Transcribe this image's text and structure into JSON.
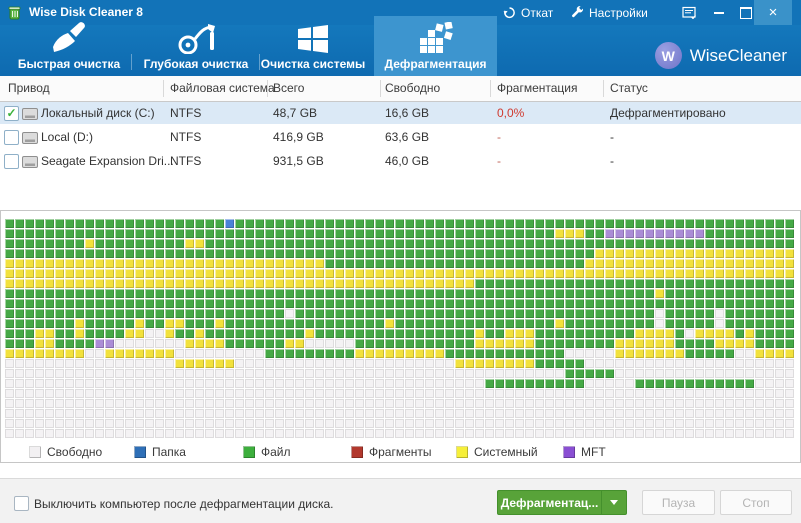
{
  "window": {
    "title": "Wise Disk Cleaner 8"
  },
  "titlebar": {
    "rollback": "Откат",
    "settings": "Настройки"
  },
  "brand": {
    "logo_letter": "W",
    "name": "WiseCleaner"
  },
  "tabs": [
    {
      "label": "Быстрая очистка",
      "icon": "brush-icon",
      "active": false
    },
    {
      "label": "Глубокая очистка",
      "icon": "vacuum-icon",
      "active": false
    },
    {
      "label": "Очистка системы",
      "icon": "windows-icon",
      "active": false
    },
    {
      "label": "Дефрагментация",
      "icon": "defrag-blocks-icon",
      "active": true
    }
  ],
  "table": {
    "columns": [
      "Привод",
      "Файловая система",
      "Всего",
      "Свободно",
      "Фрагментация",
      "Статус"
    ],
    "rows": [
      {
        "check": "✓",
        "drive": "Локальный диск (C:)",
        "fs": "NTFS",
        "total": "48,7 GB",
        "free": "16,6 GB",
        "frag": "0,0%",
        "frag_color": "#d03a2f",
        "status": "Дефрагментировано"
      },
      {
        "check": "",
        "drive": "Local (D:)",
        "fs": "NTFS",
        "total": "416,9 GB",
        "free": "63,6 GB",
        "frag": "-",
        "frag_color": "#c0645a",
        "status": "-"
      },
      {
        "check": "",
        "drive": "Seagate Expansion Dri...",
        "fs": "NTFS",
        "total": "931,5 GB",
        "free": "46,0 GB",
        "frag": "-",
        "frag_color": "#c0645a",
        "status": "-"
      }
    ]
  },
  "map": {
    "cols": 79,
    "cell_colors": {
      "G": "#45a945",
      "Y": "#f2e13c",
      "P": "#ab8cd6",
      "B": "#4b82d8",
      "W": "#f4f2f4"
    },
    "rows": [
      "22G 1B 56G",
      "55G 3Y 2G 10P 9G",
      "8G 1Y 9G 2Y 59G",
      "59G 20Y",
      "32Y 26G 21Y",
      "79Y",
      "47Y 32G",
      "65G 1Y 13G",
      "79G",
      "28G 1W 36G 1W 5G 1W 7G",
      "7G 1Y 5G 1Y 2G 2Y 3G 1Y 16G 1Y 16G 1Y 9G 1W 5G 1W 7G",
      "3G 2Y 2G 1Y 4G 2Y 2W 1Y 2G 1Y 10G 1Y 16G 1Y 2G 3Y 10G 4Y 1G 1W 4Y 1G 1Y 4G",
      "3G 2Y 4G 2P 7W 4Y 6G 2Y 5W 12G 6Y 8G 6Y 4G 4Y 4G",
      "8Y 2W 7Y 9W 9G 9Y 12G 5W 7Y 5G 2W 4Y",
      "17W 6Y 22W 8Y 5G 21W",
      "56W 5G 18W",
      "48W 10G 5W 12G 4W",
      "79W",
      "79W",
      "79W",
      "79W",
      "79W"
    ]
  },
  "legend": [
    {
      "label": "Свободно",
      "color": "#f2f0f2"
    },
    {
      "label": "Папка",
      "color": "#2e6fb7"
    },
    {
      "label": "Файл",
      "color": "#3daf3d"
    },
    {
      "label": "Фрагменты",
      "color": "#b2382d"
    },
    {
      "label": "Системный",
      "color": "#f6ef39"
    },
    {
      "label": "MFT",
      "color": "#8a4fd3"
    }
  ],
  "footer": {
    "checkbox_label": "Выключить компьютер после дефрагментации диска.",
    "defrag_button": "Дефрагментац...",
    "pause_button": "Пауза",
    "stop_button": "Стоп"
  }
}
